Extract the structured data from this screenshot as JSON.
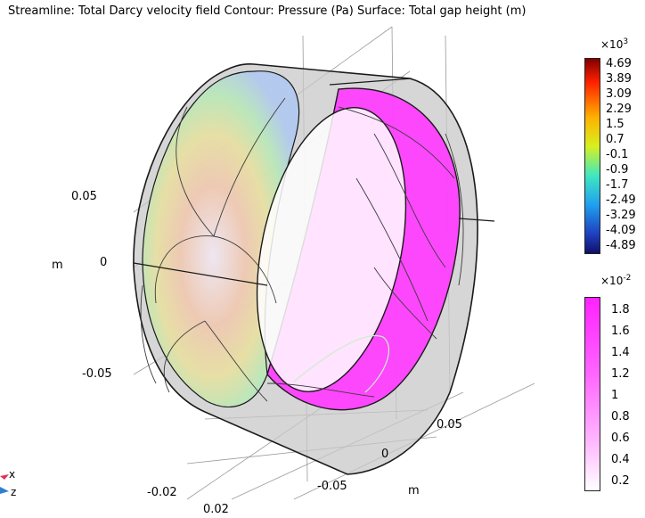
{
  "title": "Streamline: Total Darcy velocity field  Contour: Pressure (Pa)  Surface: Total gap height (m)",
  "colors": {
    "gap_surface": "#ff33ff",
    "shell": "#9a9a9a",
    "streamline": "#3c3c3c"
  },
  "chart_data": {
    "type": "3d-surface-streamline",
    "pressure_colorbar": {
      "exponent_label": "×10",
      "exponent": "3",
      "ticks": [
        "4.69",
        "3.89",
        "3.09",
        "2.29",
        "1.5",
        "0.7",
        "-0.1",
        "-0.9",
        "-1.7",
        "-2.49",
        "-3.29",
        "-4.09",
        "-4.89"
      ],
      "colormap": "rainbow"
    },
    "gap_colorbar": {
      "exponent_label": "×10",
      "exponent": "-2",
      "ticks": [
        "1.8",
        "1.6",
        "1.4",
        "1.2",
        "1",
        "0.8",
        "0.6",
        "0.4",
        "0.2"
      ],
      "colormap": "white-magenta"
    },
    "axes": {
      "vertical_ticks": [
        "0.05",
        "0",
        "-0.05"
      ],
      "vertical_unit": "m",
      "right_depth_ticks": [
        "0.05",
        "0",
        "-0.05"
      ],
      "right_unit": "m",
      "bottom_ticks": [
        "-0.02",
        "0.02"
      ]
    }
  },
  "triad": {
    "x_label": "x",
    "z_label": "z"
  }
}
